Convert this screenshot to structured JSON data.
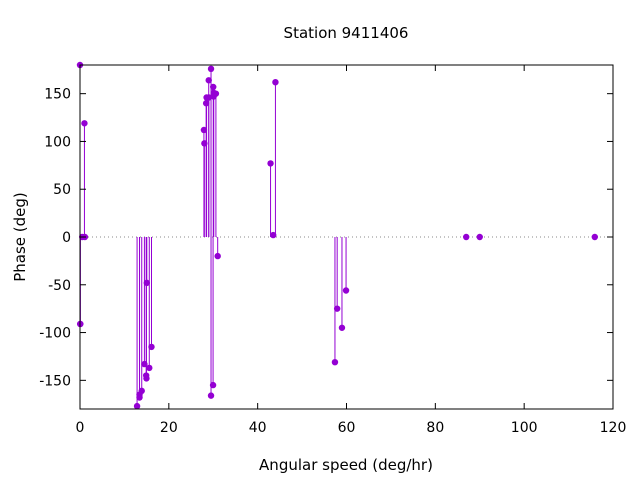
{
  "chart_data": {
    "type": "scatter",
    "style": "impulses-with-points",
    "title": "Station 9411406",
    "xlabel": "Angular speed (deg/hr)",
    "ylabel": "Phase (deg)",
    "xlim": [
      0,
      120
    ],
    "ylim": [
      -180,
      180
    ],
    "xticks": [
      0,
      20,
      40,
      60,
      80,
      100,
      120
    ],
    "yticks": [
      -150,
      -100,
      -50,
      0,
      50,
      100,
      150
    ],
    "grid": false,
    "zero_line": "dotted",
    "series": [
      {
        "color": "#9400d3",
        "points": [
          {
            "x": 0.0,
            "y": 180
          },
          {
            "x": 0.04,
            "y": -91
          },
          {
            "x": 0.08,
            "y": -91
          },
          {
            "x": 0.5,
            "y": 0
          },
          {
            "x": 1.0,
            "y": 119
          },
          {
            "x": 1.1,
            "y": 0
          },
          {
            "x": 12.85,
            "y": -177
          },
          {
            "x": 13.4,
            "y": -168
          },
          {
            "x": 13.4,
            "y": -165
          },
          {
            "x": 13.9,
            "y": -161
          },
          {
            "x": 14.5,
            "y": -133
          },
          {
            "x": 14.9,
            "y": -145
          },
          {
            "x": 14.96,
            "y": -148
          },
          {
            "x": 15.04,
            "y": -48
          },
          {
            "x": 15.6,
            "y": -137
          },
          {
            "x": 16.1,
            "y": -115
          },
          {
            "x": 27.9,
            "y": 112
          },
          {
            "x": 28.0,
            "y": 98
          },
          {
            "x": 28.4,
            "y": 140
          },
          {
            "x": 28.5,
            "y": 146
          },
          {
            "x": 28.98,
            "y": 164
          },
          {
            "x": 29.0,
            "y": 146
          },
          {
            "x": 29.5,
            "y": 176
          },
          {
            "x": 29.5,
            "y": -166
          },
          {
            "x": 29.96,
            "y": -155
          },
          {
            "x": 30.0,
            "y": 157
          },
          {
            "x": 30.08,
            "y": 147
          },
          {
            "x": 30.1,
            "y": 151
          },
          {
            "x": 30.6,
            "y": 150
          },
          {
            "x": 31.0,
            "y": -20
          },
          {
            "x": 42.9,
            "y": 77
          },
          {
            "x": 43.5,
            "y": 2
          },
          {
            "x": 44.0,
            "y": 162
          },
          {
            "x": 57.4,
            "y": -131
          },
          {
            "x": 57.9,
            "y": -75
          },
          {
            "x": 58.98,
            "y": -95
          },
          {
            "x": 59.9,
            "y": -56
          },
          {
            "x": 86.95,
            "y": 0
          },
          {
            "x": 90.0,
            "y": 0
          },
          {
            "x": 115.9,
            "y": 0
          }
        ]
      }
    ]
  }
}
